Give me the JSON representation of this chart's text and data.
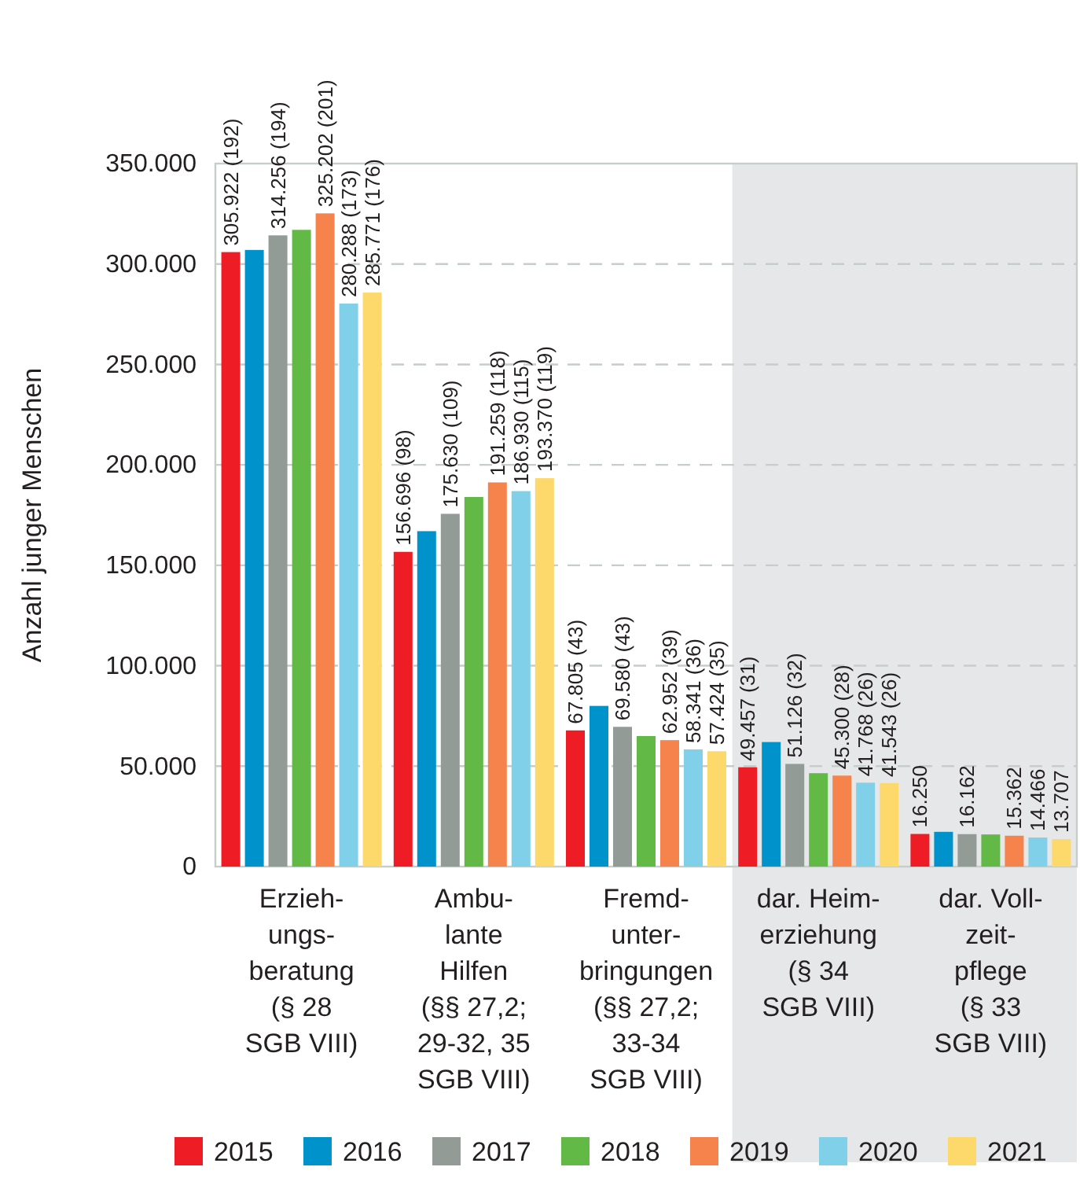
{
  "chart_data": {
    "type": "bar",
    "ylabel": "Anzahl junger Menschen",
    "categories": [
      "Erzieh-\nungs-\nberatung\n(§ 28\nSGB VIII)",
      "Ambu-\nlante\nHilfen\n(§§ 27,2;\n29-32, 35\nSGB VIII)",
      "Fremd-\nunter-\nbringungen\n(§§ 27,2;\n33-34\nSGB VIII)",
      "dar. Heim-\nerziehung\n(§ 34\nSGB VIII)",
      "dar. Voll-\nzeit-\npflege\n(§ 33\nSGB VIII)"
    ],
    "series": [
      {
        "name": "2015",
        "color": "#ee1c25",
        "values": [
          305922,
          156696,
          67805,
          49457,
          16250
        ],
        "value_labels": [
          "305.922 (192)",
          "156.696 (98)",
          "67.805 (43)",
          "49.457 (31)",
          "16.250"
        ]
      },
      {
        "name": "2016",
        "color": "#0092cb",
        "values": [
          307000,
          167000,
          80000,
          62000,
          17300
        ],
        "value_labels": [
          null,
          null,
          null,
          null,
          null
        ]
      },
      {
        "name": "2017",
        "color": "#939b96",
        "values": [
          314256,
          175630,
          69580,
          51126,
          16162
        ],
        "value_labels": [
          "314.256 (194)",
          "175.630 (109)",
          "69.580 (43)",
          "51.126 (32)",
          "16.162"
        ]
      },
      {
        "name": "2018",
        "color": "#62b946",
        "values": [
          317000,
          184000,
          65000,
          46500,
          16000
        ],
        "value_labels": [
          null,
          null,
          null,
          null,
          null
        ]
      },
      {
        "name": "2019",
        "color": "#f5834b",
        "values": [
          325202,
          191259,
          62952,
          45300,
          15362
        ],
        "value_labels": [
          "325.202 (201)",
          "191.259 (118)",
          "62.952 (39)",
          "45.300 (28)",
          "15.362"
        ]
      },
      {
        "name": "2020",
        "color": "#7fd0e8",
        "values": [
          280288,
          186930,
          58341,
          41768,
          14466
        ],
        "value_labels": [
          "280.288 (173)",
          "186.930 (115)",
          "58.341 (36)",
          "41.768 (26)",
          "14.466"
        ]
      },
      {
        "name": "2021",
        "color": "#fdd86a",
        "values": [
          285771,
          193370,
          57424,
          41543,
          13707
        ],
        "value_labels": [
          "285.771 (176)",
          "193.370 (119)",
          "57.424 (35)",
          "41.543 (26)",
          "13.707"
        ]
      }
    ],
    "ylim": [
      0,
      350000
    ],
    "yticks": [
      {
        "value": 0,
        "label": "0"
      },
      {
        "value": 50000,
        "label": "50.000"
      },
      {
        "value": 100000,
        "label": "100.000"
      },
      {
        "value": 150000,
        "label": "150.000"
      },
      {
        "value": 200000,
        "label": "200.000"
      },
      {
        "value": 250000,
        "label": "250.000"
      },
      {
        "value": 300000,
        "label": "300.000"
      },
      {
        "value": 350000,
        "label": "350.000"
      }
    ],
    "bands": [
      {
        "axis": "x",
        "from": "dar. Heim-\nerziehung\n(§ 34\nSGB VIII)",
        "to": "dar. Voll-\nzeit-\npflege\n(§ 33\nSGB VIII)",
        "color": "#e6e7e8"
      }
    ],
    "grid": "y",
    "legend": "bottom"
  }
}
